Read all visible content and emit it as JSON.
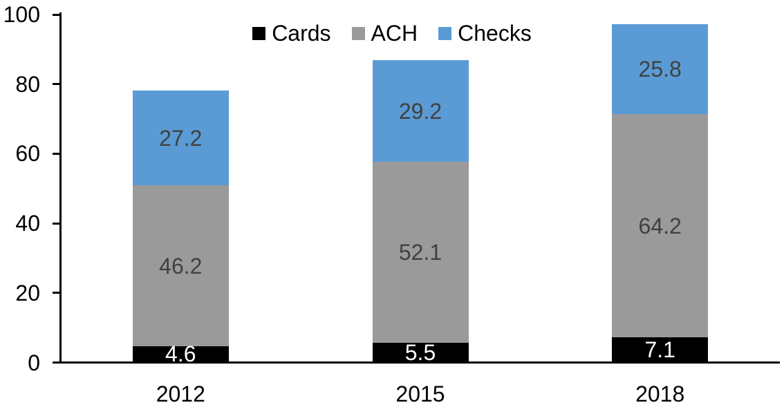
{
  "chart_data": {
    "type": "bar",
    "variant": "stacked-column",
    "title": "",
    "categories": [
      "2012",
      "2015",
      "2018"
    ],
    "series": [
      {
        "name": "Cards",
        "color": "#000000",
        "label_color": "#FFFFFF",
        "values": [
          4.6,
          5.5,
          7.1
        ]
      },
      {
        "name": "ACH",
        "color": "#9A9A9A",
        "label_color": "#404040",
        "values": [
          46.2,
          52.1,
          64.2
        ]
      },
      {
        "name": "Checks",
        "color": "#5B9BD5",
        "label_color": "#404040",
        "values": [
          27.2,
          29.2,
          25.8
        ]
      }
    ],
    "y_ticks": [
      "0",
      "20",
      "40",
      "60",
      "80",
      "100"
    ],
    "ylim": [
      0,
      100
    ],
    "legend_position": "top",
    "grid": false,
    "axis_color": "#000000",
    "background": "#FFFFFF"
  }
}
